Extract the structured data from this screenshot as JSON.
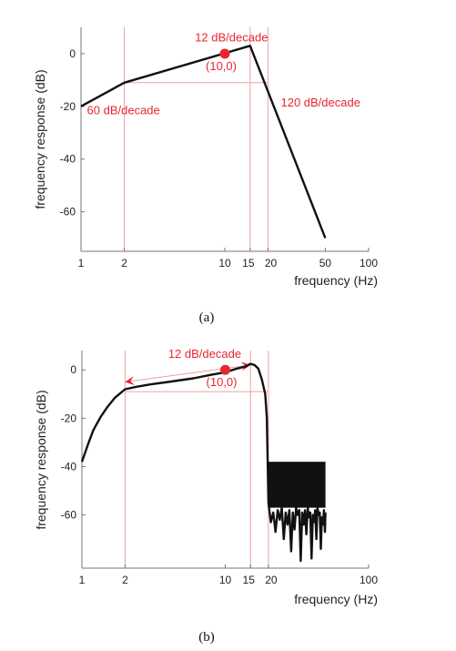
{
  "colors": {
    "curve": "#111111",
    "accent": "#e8262f",
    "guide": "#f2a0a0",
    "axis": "#777777"
  },
  "chart_data": [
    {
      "type": "line",
      "caption": "(a)",
      "xscale": "log",
      "xlim": [
        1,
        100
      ],
      "ylim": [
        -75,
        10
      ],
      "xticks": [
        1,
        2,
        10,
        15,
        20,
        50,
        100
      ],
      "xtick_labels": [
        "1",
        "2",
        "10",
        "15",
        "20",
        "50",
        "100"
      ],
      "yticks": [
        0,
        -20,
        -40,
        -60
      ],
      "ytick_labels": [
        "0",
        "-20",
        "-40",
        "-60"
      ],
      "xlabel": "frequency (Hz)",
      "ylabel": "frequency response (dB)",
      "series": [
        {
          "x": [
            1,
            2,
            15,
            50
          ],
          "y": [
            -20,
            -11,
            3,
            -70
          ]
        }
      ],
      "marker": {
        "x": 10,
        "y": 0,
        "label": "(10,0)"
      },
      "guides": {
        "vertical_x": [
          2,
          15,
          20
        ],
        "horizontal": [
          {
            "y": -11,
            "x": [
              2,
              20
            ]
          }
        ]
      },
      "annotations": [
        {
          "text": "12 dB/decade",
          "x": 6.2,
          "y": 4.6
        },
        {
          "text": "60 dB/decade",
          "x": 1.1,
          "y": -23
        },
        {
          "text": "120 dB/decade",
          "x": 24.5,
          "y": -20
        }
      ]
    },
    {
      "type": "line",
      "caption": "(b)",
      "xscale": "log",
      "xlim": [
        1,
        100
      ],
      "ylim": [
        -82,
        8
      ],
      "xticks": [
        1,
        2,
        10,
        15,
        20,
        100
      ],
      "xtick_labels": [
        "1",
        "2",
        "10",
        "15",
        "20",
        "100"
      ],
      "yticks": [
        0,
        -20,
        -40,
        -60
      ],
      "ytick_labels": [
        "0",
        "-20",
        "-40",
        "-60"
      ],
      "xlabel": "frequency (Hz)",
      "ylabel": "frequency response (dB)",
      "series": [
        {
          "x": [
            1,
            1.1,
            1.2,
            1.35,
            1.5,
            1.7,
            2,
            2.4,
            3,
            4,
            6,
            8,
            10,
            12,
            14,
            15,
            16,
            17,
            18,
            19,
            19.5
          ],
          "y": [
            -38,
            -31,
            -25,
            -19.5,
            -15.5,
            -11.5,
            -8,
            -7,
            -6,
            -5,
            -3.5,
            -2,
            -1,
            0.5,
            1.5,
            2.5,
            2,
            0.5,
            -4,
            -10,
            -20
          ]
        },
        {
          "x": [
            20,
            20.8,
            21.6,
            22.4,
            23.2,
            24,
            24.8,
            25.6,
            26.4,
            27.2,
            28,
            28.8,
            29.6,
            30.4,
            31.2,
            32,
            32.8,
            33.6,
            34.4,
            35.2,
            36,
            36.8,
            37.6,
            38.4,
            39.2,
            40,
            40.8,
            41.6,
            42.4,
            43.2,
            44,
            44.8,
            45.6,
            46.4,
            47.2,
            48,
            48.8,
            49.6,
            50
          ],
          "y": [
            -55,
            -63,
            -59,
            -67,
            -58,
            -62,
            -57,
            -70,
            -59,
            -64,
            -58,
            -75,
            -59,
            -66,
            -57,
            -60,
            -58,
            -79,
            -59,
            -64,
            -58,
            -68,
            -57,
            -61,
            -59,
            -78,
            -60,
            -63,
            -58,
            -70,
            -57,
            -60,
            -59,
            -74,
            -61,
            -64,
            -58,
            -67,
            -59
          ]
        }
      ],
      "marker": {
        "x": 10,
        "y": 0,
        "label": "(10,0)"
      },
      "guides": {
        "vertical_x": [
          2,
          15,
          20
        ],
        "horizontal": [
          {
            "y": -9,
            "x": [
              2,
              20
            ]
          }
        ]
      },
      "slope_arrow": {
        "text": "12 dB/decade",
        "x_start": 2,
        "x_end": 15,
        "y_start": -5,
        "y_end": 2
      },
      "annotations": [
        {
          "text": "12 dB/decade",
          "x": 4,
          "y": 5
        }
      ]
    }
  ]
}
